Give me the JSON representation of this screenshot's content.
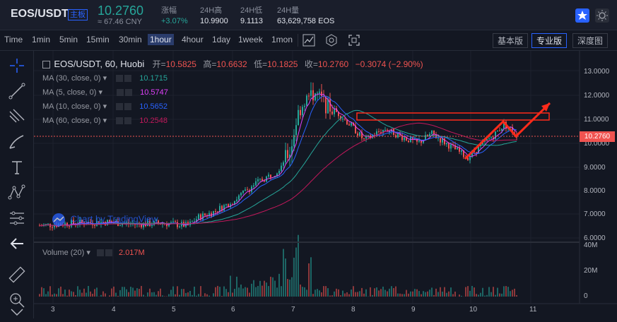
{
  "header": {
    "pair": "EOS/USDT",
    "badge": "主板",
    "last_price": "10.2760",
    "cny": "≈ 67.46 CNY",
    "change_label": "涨幅",
    "change_value": "+3.07%",
    "high_label": "24H高",
    "high_value": "10.9900",
    "low_label": "24H低",
    "low_value": "9.1113",
    "vol_label": "24H量",
    "vol_value": "63,629,758 EOS"
  },
  "timeframes": [
    "Time",
    "1min",
    "5min",
    "15min",
    "30min",
    "1hour",
    "4hour",
    "1day",
    "1week",
    "1mon"
  ],
  "active_timeframe": "1hour",
  "versions": [
    "基本版",
    "专业版",
    "深度图"
  ],
  "active_version": "专业版",
  "legend": {
    "symbol": "EOS/USDT, 60, Huobi",
    "open_label": "开=",
    "open": "10.5825",
    "high_label": "高=",
    "high": "10.6632",
    "low_label": "低=",
    "low": "10.1825",
    "close_label": "收=",
    "close": "10.2760",
    "change": "−0.3074 (−2.90%)"
  },
  "ma_indicators": [
    {
      "label": "MA (30, close, 0)",
      "value": "10.1715",
      "color": "#26a69a"
    },
    {
      "label": "MA (5, close, 0)",
      "value": "10.5747",
      "color": "#e040fb"
    },
    {
      "label": "MA (10, close, 0)",
      "value": "10.5652",
      "color": "#2962ff"
    },
    {
      "label": "MA (60, close, 0)",
      "value": "10.2548",
      "color": "#c2185b"
    }
  ],
  "price_axis": [
    "13.0000",
    "12.0000",
    "11.0000",
    "10.0000",
    "9.0000",
    "8.0000",
    "7.0000",
    "6.0000"
  ],
  "current_price_tag": "10.2760",
  "volume": {
    "label": "Volume (20)",
    "value": "2.017M",
    "axis": [
      "40M",
      "20M",
      "0"
    ]
  },
  "x_axis": [
    "3",
    "4",
    "5",
    "6",
    "7",
    "8",
    "9",
    "10",
    "11"
  ],
  "watermark": "Chart by TradingView",
  "colors": {
    "up": "#26a69a",
    "down": "#ef5350",
    "annotation": "#ff2a1a"
  }
}
